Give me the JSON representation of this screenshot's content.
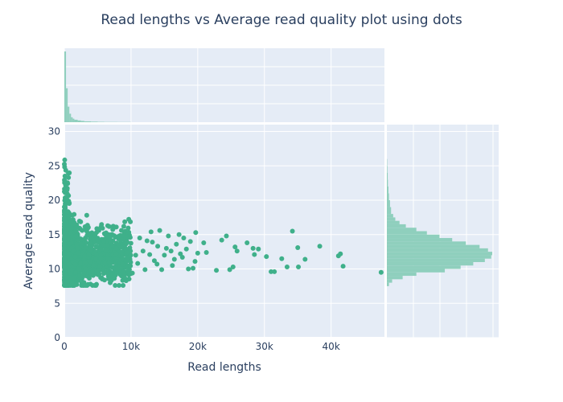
{
  "chart_data": {
    "type": "scatter",
    "title": "Read lengths vs Average read quality plot using dots",
    "xlabel": "Read lengths",
    "ylabel": "Average read quality",
    "xlim": [
      0,
      48000
    ],
    "ylim": [
      0,
      31
    ],
    "x_ticks": [
      0,
      10000,
      20000,
      30000,
      40000
    ],
    "x_tick_labels": [
      "0",
      "10k",
      "20k",
      "30k",
      "40k"
    ],
    "y_ticks": [
      0,
      5,
      10,
      15,
      20,
      25,
      30
    ],
    "y_tick_labels": [
      "0",
      "5",
      "10",
      "15",
      "20",
      "25",
      "30"
    ],
    "grid": true,
    "legend": "none",
    "colors": {
      "marker": "#3fb08a",
      "histogram": "#8fcfbd",
      "plot_background": "#e5ecf6",
      "grid": "#ffffff",
      "text": "#2a3f5f"
    },
    "sparse_points": [
      [
        10200,
        9.4
      ],
      [
        11000,
        10.8
      ],
      [
        11800,
        12.6
      ],
      [
        12400,
        14.1
      ],
      [
        13000,
        15.4
      ],
      [
        13500,
        11.2
      ],
      [
        14000,
        13.3
      ],
      [
        14600,
        9.9
      ],
      [
        15000,
        12.0
      ],
      [
        15600,
        14.8
      ],
      [
        16200,
        10.5
      ],
      [
        16800,
        13.6
      ],
      [
        17200,
        15.0
      ],
      [
        17700,
        11.7
      ],
      [
        18300,
        12.9
      ],
      [
        18900,
        14.0
      ],
      [
        19300,
        10.1
      ],
      [
        19700,
        15.3
      ],
      [
        20000,
        12.3
      ],
      [
        20900,
        13.8
      ],
      [
        21300,
        12.4
      ],
      [
        22800,
        9.8
      ],
      [
        23600,
        14.2
      ],
      [
        24300,
        14.8
      ],
      [
        24800,
        9.9
      ],
      [
        25300,
        10.3
      ],
      [
        25600,
        13.2
      ],
      [
        25900,
        12.6
      ],
      [
        27400,
        13.8
      ],
      [
        28300,
        13.0
      ],
      [
        28500,
        12.1
      ],
      [
        29100,
        12.9
      ],
      [
        30300,
        11.8
      ],
      [
        31000,
        9.6
      ],
      [
        31500,
        9.6
      ],
      [
        32600,
        11.5
      ],
      [
        33400,
        10.3
      ],
      [
        34200,
        15.5
      ],
      [
        35000,
        13.1
      ],
      [
        35100,
        10.3
      ],
      [
        36100,
        11.4
      ],
      [
        38300,
        13.3
      ],
      [
        41100,
        11.9
      ],
      [
        41400,
        12.2
      ],
      [
        41800,
        10.4
      ],
      [
        47500,
        9.5
      ],
      [
        12800,
        12.1
      ],
      [
        13900,
        10.7
      ],
      [
        15300,
        13.0
      ],
      [
        16500,
        11.4
      ],
      [
        17900,
        14.5
      ],
      [
        19600,
        11.1
      ],
      [
        11300,
        14.5
      ],
      [
        10700,
        12.0
      ],
      [
        14300,
        15.6
      ],
      [
        16000,
        12.6
      ],
      [
        18600,
        10.0
      ],
      [
        12100,
        9.9
      ],
      [
        13200,
        13.9
      ],
      [
        17400,
        12.2
      ]
    ],
    "dense_region": {
      "x_range": [
        0,
        10000
      ],
      "y_center": 12,
      "y_spread": 2.2
    },
    "x_histogram": {
      "bins": [
        0,
        250,
        500,
        750,
        1000,
        1250,
        1500,
        2000,
        2500,
        3000,
        4000,
        5000,
        6000,
        8000,
        10000
      ],
      "relative_counts": [
        1.0,
        0.48,
        0.22,
        0.12,
        0.07,
        0.05,
        0.035,
        0.025,
        0.018,
        0.012,
        0.008,
        0.005,
        0.003,
        0.002
      ]
    },
    "y_histogram": {
      "bins": [
        7.5,
        8,
        8.5,
        9,
        9.5,
        10,
        10.5,
        11,
        11.5,
        12,
        12.5,
        13,
        13.5,
        14,
        14.5,
        15,
        15.5,
        16,
        16.5,
        17,
        17.5,
        18,
        19,
        20,
        21,
        22,
        23,
        24,
        25,
        26
      ],
      "relative_counts": [
        0.02,
        0.05,
        0.15,
        0.28,
        0.55,
        0.7,
        0.82,
        0.93,
        0.99,
        1.0,
        0.96,
        0.88,
        0.75,
        0.62,
        0.5,
        0.38,
        0.28,
        0.18,
        0.12,
        0.08,
        0.06,
        0.04,
        0.03,
        0.02,
        0.015,
        0.01,
        0.008,
        0.005,
        0.003
      ]
    }
  }
}
